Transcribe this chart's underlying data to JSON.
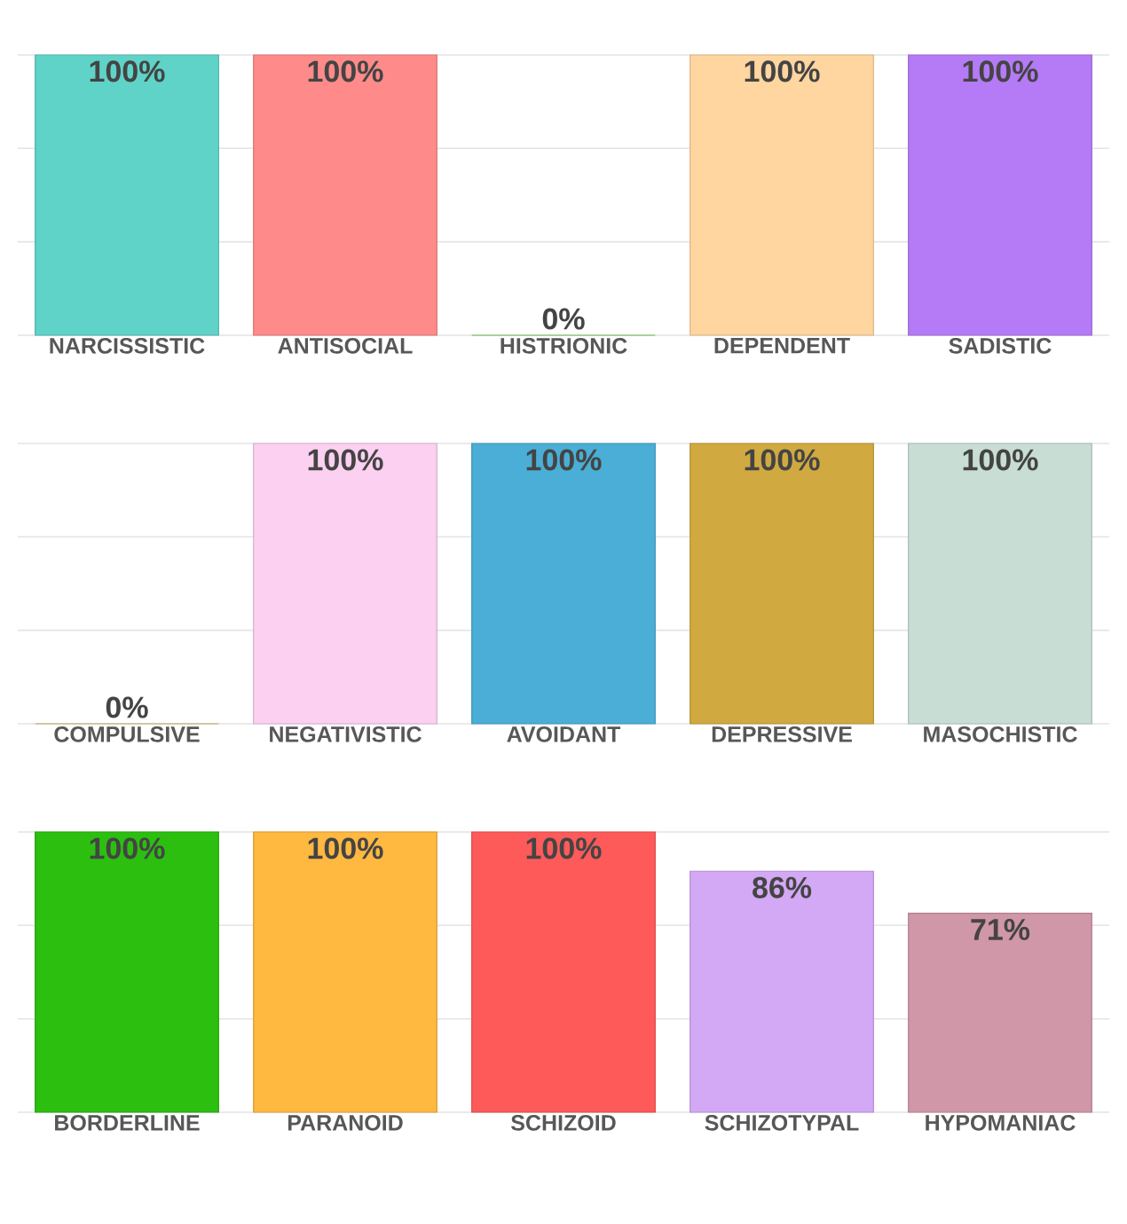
{
  "chart_data": [
    {
      "type": "bar",
      "categories": [
        "NARCISSISTIC",
        "ANTISOCIAL",
        "HISTRIONIC",
        "DEPENDENT",
        "SADISTIC"
      ],
      "values": [
        100,
        100,
        0,
        100,
        100
      ],
      "value_labels": [
        "100%",
        "100%",
        "0%",
        "100%",
        "100%"
      ],
      "colors": [
        "#5fd3c8",
        "#ff8a8a",
        "#7ddc50",
        "#ffd5a0",
        "#b57af5"
      ],
      "ylim": [
        0,
        100
      ],
      "yticks": [
        {
          "value": 0,
          "label": null
        },
        {
          "value": 33.33,
          "label": null
        },
        {
          "value": 66.67,
          "label": null
        },
        {
          "value": 100,
          "label": null
        }
      ],
      "grid": "y",
      "tick_labels": "x"
    },
    {
      "type": "bar",
      "categories": [
        "COMPULSIVE",
        "NEGATIVISTIC",
        "AVOIDANT",
        "DEPRESSIVE",
        "MASOCHISTIC"
      ],
      "values": [
        0,
        100,
        100,
        100,
        100
      ],
      "value_labels": [
        "0%",
        "100%",
        "100%",
        "100%",
        "100%"
      ],
      "colors": [
        "#d8c070",
        "#fbd0f0",
        "#4aaed6",
        "#d0aa40",
        "#c8ddd3"
      ],
      "ylim": [
        0,
        100
      ],
      "yticks": [
        {
          "value": 0,
          "label": null
        },
        {
          "value": 33.33,
          "label": null
        },
        {
          "value": 66.67,
          "label": null
        },
        {
          "value": 100,
          "label": null
        }
      ],
      "grid": "y",
      "tick_labels": "x"
    },
    {
      "type": "bar",
      "categories": [
        "BORDERLINE",
        "PARANOID",
        "SCHIZOID",
        "SCHIZOTYPAL",
        "HYPOMANIAC"
      ],
      "values": [
        100,
        100,
        100,
        86,
        71
      ],
      "value_labels": [
        "100%",
        "100%",
        "100%",
        "86%",
        "71%"
      ],
      "colors": [
        "#2cbf10",
        "#ffb840",
        "#ff5a5a",
        "#d3a8f5",
        "#d097a8"
      ],
      "ylim": [
        0,
        100
      ],
      "yticks": [
        {
          "value": 0,
          "label": null
        },
        {
          "value": 33.33,
          "label": null
        },
        {
          "value": 66.67,
          "label": null
        },
        {
          "value": 100,
          "label": null
        }
      ],
      "grid": "y",
      "tick_labels": "x"
    }
  ]
}
